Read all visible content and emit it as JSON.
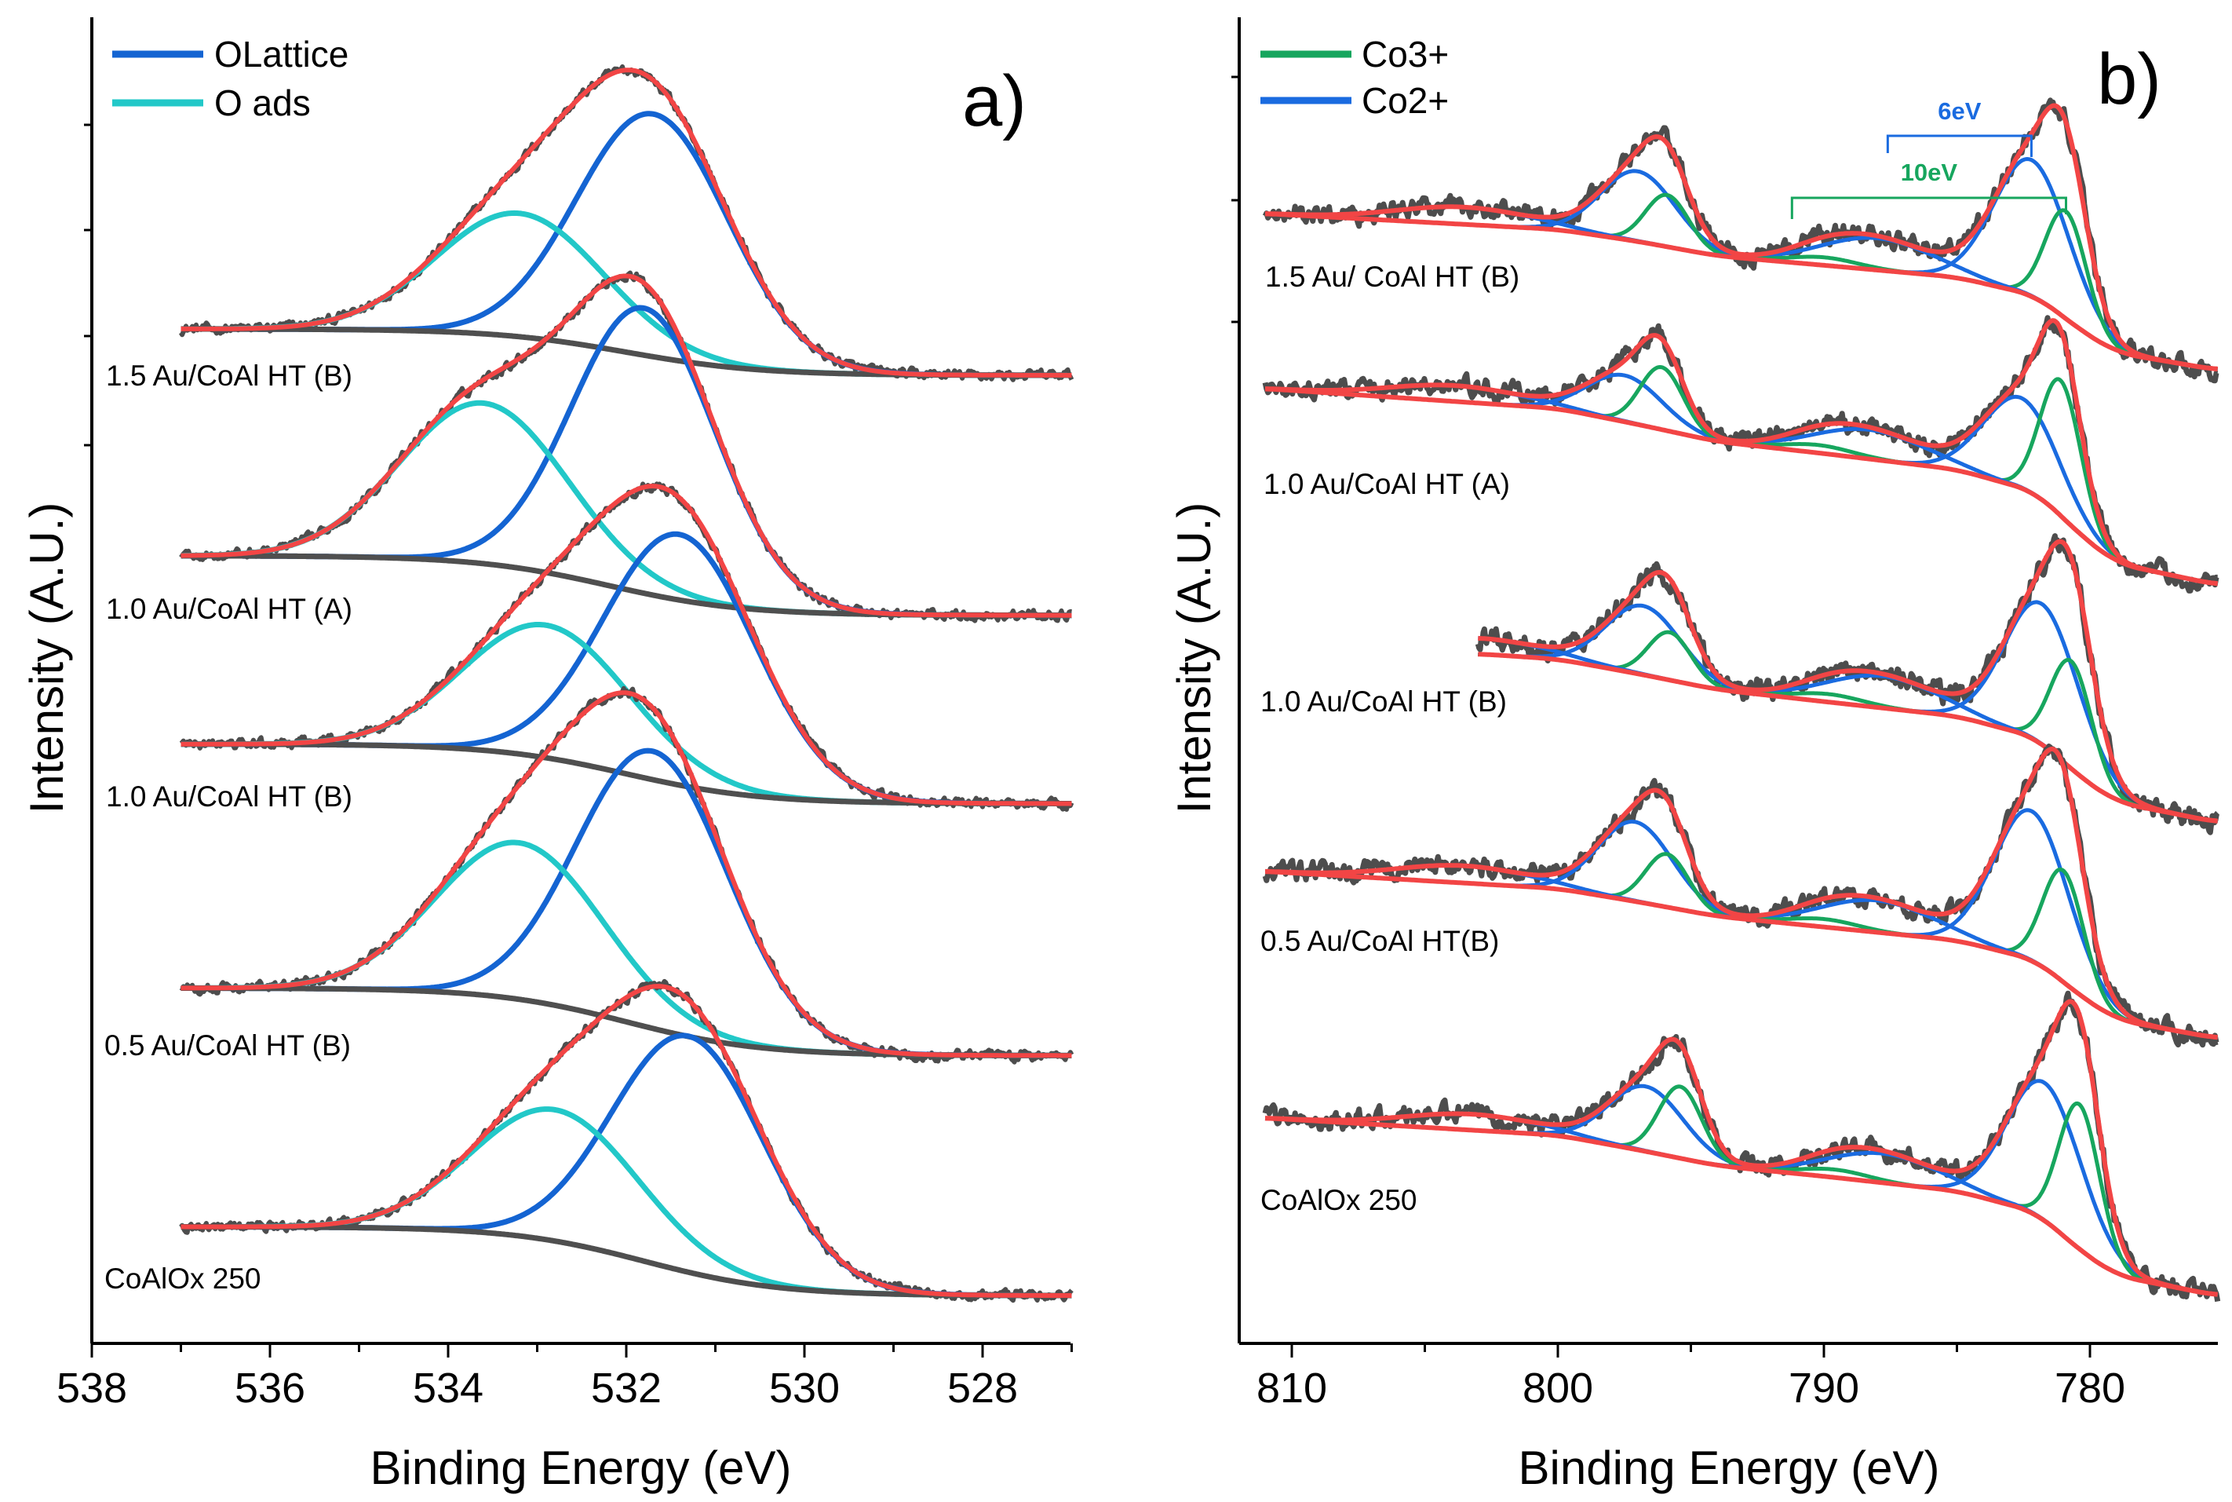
{
  "chart_data": [
    {
      "type": "line",
      "panel_label": "a)",
      "xlabel": "Binding Energy (eV)",
      "ylabel": "Intensity (A.U.)",
      "xlim": [
        538,
        527
      ],
      "x_reversed": true,
      "x_ticks": [
        538,
        536,
        534,
        532,
        530,
        528
      ],
      "x_minor_step": 1,
      "ylim": [
        0,
        100
      ],
      "y_tick_labels_shown": false,
      "grid": false,
      "legend_position": "top-left",
      "legend": [
        {
          "name": "OLattice",
          "color": "#1464d2"
        },
        {
          "name": "O ads",
          "color": "#22c8c8"
        }
      ],
      "colors": {
        "data": "#4d4d4d",
        "envelope": "#f24545",
        "background": "#4f4f4f"
      },
      "data_range": [
        537,
        527
      ],
      "spectra": [
        {
          "label": "1.5 Au/CoAl HT (B)",
          "background": {
            "high_be_level": 76.5,
            "low_be_level": 73.0,
            "step_center": 532.0
          },
          "components": [
            {
              "name": "OLattice",
              "center": 531.7,
              "height": 18.3,
              "fwhm": 2.0
            },
            {
              "name": "O ads",
              "center": 533.2,
              "height": 9.3,
              "fwhm": 2.2
            }
          ]
        },
        {
          "label": "1.0 Au/CoAl HT (A)",
          "background": {
            "high_be_level": 59.4,
            "low_be_level": 54.9,
            "step_center": 532.2
          },
          "components": [
            {
              "name": "OLattice",
              "center": 531.8,
              "height": 21.5,
              "fwhm": 1.9
            },
            {
              "name": "O ads",
              "center": 533.6,
              "height": 12.1,
              "fwhm": 2.2
            }
          ]
        },
        {
          "label": "1.0 Au/CoAl HT (B)",
          "background": {
            "high_be_level": 45.2,
            "low_be_level": 40.7,
            "step_center": 532.0
          },
          "components": [
            {
              "name": "OLattice",
              "center": 531.4,
              "height": 18.9,
              "fwhm": 2.0
            },
            {
              "name": "O ads",
              "center": 532.9,
              "height": 10.0,
              "fwhm": 2.2
            }
          ]
        },
        {
          "label": "0.5 Au/CoAl HT (B)",
          "background": {
            "high_be_level": 26.8,
            "low_be_level": 21.7,
            "step_center": 532.0
          },
          "components": [
            {
              "name": "OLattice",
              "center": 531.7,
              "height": 20.9,
              "fwhm": 2.0
            },
            {
              "name": "O ads",
              "center": 533.2,
              "height": 11.8,
              "fwhm": 2.2
            }
          ]
        },
        {
          "label": "CoAlOx 250",
          "background": {
            "high_be_level": 8.8,
            "low_be_level": 3.6,
            "step_center": 531.8
          },
          "components": [
            {
              "name": "OLattice",
              "center": 531.3,
              "height": 17.8,
              "fwhm": 2.0
            },
            {
              "name": "O ads",
              "center": 532.8,
              "height": 9.9,
              "fwhm": 2.2
            }
          ]
        }
      ]
    },
    {
      "type": "line",
      "panel_label": "b)",
      "xlabel": "Binding Energy (eV)",
      "ylabel": "Intensity (A.U.)",
      "xlim": [
        812,
        775.2
      ],
      "x_reversed": true,
      "x_ticks": [
        810,
        800,
        790,
        780
      ],
      "x_minor_step": 5,
      "ylim": [
        0,
        100
      ],
      "y_tick_labels_shown": false,
      "grid": false,
      "legend_position": "top-left",
      "legend": [
        {
          "name": "Co3+",
          "color": "#17a65e"
        },
        {
          "name": "Co2+",
          "color": "#1a6be0"
        }
      ],
      "colors": {
        "data": "#4d4d4d",
        "envelope": "#f24545",
        "background": "#f24545"
      },
      "annotations": [
        {
          "text": "6eV",
          "from": 787.6,
          "to": 782.2,
          "color": "#1a6be0"
        },
        {
          "text": "10eV",
          "from": 791.2,
          "to": 780.9,
          "color": "#17a65e"
        }
      ],
      "spectra": [
        {
          "label": "1.5 Au/ CoAl HT (B)",
          "data_range": [
            811,
            775.2
          ],
          "background": [
            [
              811,
              85.2
            ],
            [
              800,
              84.0
            ],
            [
              797,
              83.1
            ],
            [
              794,
              82.0
            ],
            [
              790,
              81.3
            ],
            [
              785,
              80.4
            ],
            [
              782,
              79.0
            ],
            [
              780.5,
              76.6
            ],
            [
              779,
              74.7
            ],
            [
              775.2,
              73.4
            ]
          ],
          "components": [
            {
              "name": "Co2+",
              "center": 782.2,
              "height": 10.3,
              "fwhm": 3.3
            },
            {
              "name": "Co3+",
              "center": 780.9,
              "height": 8.1,
              "fwhm": 1.8
            },
            {
              "name": "Co2+",
              "center": 797.0,
              "height": 5.3,
              "fwhm": 3.3
            },
            {
              "name": "Co3+",
              "center": 795.9,
              "height": 3.9,
              "fwhm": 1.9
            },
            {
              "name": "Co2+",
              "center": 788.0,
              "height": 2.4,
              "fwhm": 5.0
            },
            {
              "name": "Co2+",
              "center": 803.5,
              "height": 1.3,
              "fwhm": 6.0
            },
            {
              "name": "Co3+",
              "center": 790.0,
              "height": 0.6,
              "fwhm": 3.0
            }
          ]
        },
        {
          "label": "1.0 Au/CoAl HT (A)",
          "data_range": [
            811,
            775.2
          ],
          "background": [
            [
              811,
              72.0
            ],
            [
              800,
              70.5
            ],
            [
              797,
              69.3
            ],
            [
              794,
              68.0
            ],
            [
              790,
              67.1
            ],
            [
              785,
              65.9
            ],
            [
              782,
              64.2
            ],
            [
              780.5,
              61.2
            ],
            [
              779,
              58.8
            ],
            [
              775.2,
              57.2
            ]
          ],
          "components": [
            {
              "name": "Co2+",
              "center": 782.6,
              "height": 6.8,
              "fwhm": 3.3
            },
            {
              "name": "Co3+",
              "center": 781.1,
              "height": 10.2,
              "fwhm": 1.8
            },
            {
              "name": "Co2+",
              "center": 797.5,
              "height": 3.5,
              "fwhm": 3.3
            },
            {
              "name": "Co3+",
              "center": 796.1,
              "height": 4.7,
              "fwhm": 1.9
            },
            {
              "name": "Co2+",
              "center": 788.3,
              "height": 2.2,
              "fwhm": 5.0
            },
            {
              "name": "Co2+",
              "center": 803.8,
              "height": 1.2,
              "fwhm": 6.0
            },
            {
              "name": "Co3+",
              "center": 790.2,
              "height": 0.6,
              "fwhm": 3.0
            }
          ]
        },
        {
          "label": "1.0 Au/CoAl HT (B)",
          "data_range": [
            803,
            775.2
          ],
          "background": [
            [
              803,
              52.0
            ],
            [
              800,
              51.6
            ],
            [
              797,
              50.5
            ],
            [
              794,
              49.3
            ],
            [
              790,
              48.4
            ],
            [
              785,
              47.3
            ],
            [
              782,
              45.7
            ],
            [
              780.5,
              42.9
            ],
            [
              779,
              40.8
            ],
            [
              775.2,
              39.3
            ]
          ],
          "components": [
            {
              "name": "Co2+",
              "center": 781.8,
              "height": 10.6,
              "fwhm": 3.3
            },
            {
              "name": "Co3+",
              "center": 780.7,
              "height": 8.1,
              "fwhm": 1.8
            },
            {
              "name": "Co2+",
              "center": 796.8,
              "height": 5.2,
              "fwhm": 3.3
            },
            {
              "name": "Co3+",
              "center": 795.8,
              "height": 3.6,
              "fwhm": 1.9
            },
            {
              "name": "Co2+",
              "center": 787.8,
              "height": 2.4,
              "fwhm": 5.0
            },
            {
              "name": "Co2+",
              "center": 803.0,
              "height": 1.2,
              "fwhm": 6.0
            },
            {
              "name": "Co3+",
              "center": 789.8,
              "height": 0.6,
              "fwhm": 3.0
            }
          ]
        },
        {
          "label": "0.5 Au/CoAl HT(B)",
          "data_range": [
            811,
            775.2
          ],
          "background": [
            [
              811,
              35.6
            ],
            [
              800,
              34.3
            ],
            [
              797,
              33.3
            ],
            [
              794,
              32.2
            ],
            [
              790,
              31.4
            ],
            [
              785,
              30.4
            ],
            [
              782,
              28.9
            ],
            [
              780.5,
              26.4
            ],
            [
              779,
              24.4
            ],
            [
              775.2,
              23.0
            ]
          ],
          "components": [
            {
              "name": "Co2+",
              "center": 782.2,
              "height": 11.3,
              "fwhm": 3.3
            },
            {
              "name": "Co3+",
              "center": 781.0,
              "height": 8.4,
              "fwhm": 1.8
            },
            {
              "name": "Co2+",
              "center": 797.1,
              "height": 6.0,
              "fwhm": 3.3
            },
            {
              "name": "Co3+",
              "center": 795.9,
              "height": 4.0,
              "fwhm": 1.9
            },
            {
              "name": "Co2+",
              "center": 788.0,
              "height": 2.4,
              "fwhm": 5.0
            },
            {
              "name": "Co2+",
              "center": 803.5,
              "height": 1.3,
              "fwhm": 6.0
            },
            {
              "name": "Co3+",
              "center": 790.0,
              "height": 0.6,
              "fwhm": 3.0
            }
          ]
        },
        {
          "label": "CoAlOx 250",
          "data_range": [
            811,
            775.2
          ],
          "background": [
            [
              811,
              17.0
            ],
            [
              800,
              15.7
            ],
            [
              797,
              14.6
            ],
            [
              794,
              13.4
            ],
            [
              790,
              12.6
            ],
            [
              785,
              11.5
            ],
            [
              782,
              9.9
            ],
            [
              780.5,
              7.2
            ],
            [
              779,
              5.1
            ],
            [
              775.2,
              3.6
            ]
          ],
          "components": [
            {
              "name": "Co2+",
              "center": 781.7,
              "height": 10.4,
              "fwhm": 3.3
            },
            {
              "name": "Co3+",
              "center": 780.4,
              "height": 10.9,
              "fwhm": 1.8
            },
            {
              "name": "Co2+",
              "center": 796.7,
              "height": 4.9,
              "fwhm": 3.3
            },
            {
              "name": "Co3+",
              "center": 795.4,
              "height": 5.4,
              "fwhm": 1.9
            },
            {
              "name": "Co2+",
              "center": 787.8,
              "height": 2.2,
              "fwhm": 5.0
            },
            {
              "name": "Co2+",
              "center": 803.2,
              "height": 1.2,
              "fwhm": 6.0
            },
            {
              "name": "Co3+",
              "center": 789.6,
              "height": 0.6,
              "fwhm": 3.0
            }
          ]
        }
      ]
    }
  ]
}
